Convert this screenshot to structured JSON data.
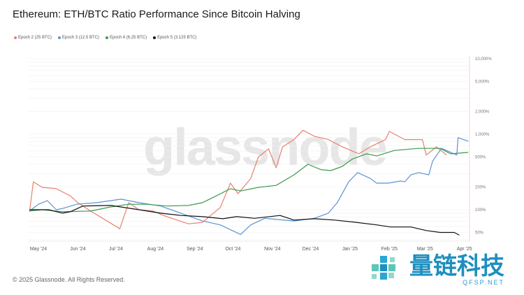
{
  "title": "Ethereum: ETH/BTC Ratio Performance Since Bitcoin Halving",
  "copyright": "© 2025 Glassnode. All Rights Reserved.",
  "watermark": "glassnode",
  "logo": {
    "cn": "量链科技",
    "en": "QFSP.NET"
  },
  "chart_data": {
    "type": "line",
    "title": "Ethereum: ETH/BTC Ratio Performance Since Bitcoin Halving",
    "xlabel": "",
    "ylabel": "",
    "yscale": "log",
    "ylim": [
      40,
      10000
    ],
    "grid": true,
    "legend_position": "top-left",
    "x_ticks": [
      "May '24",
      "Jun '24",
      "Jul '24",
      "Aug '24",
      "Sep '24",
      "Oct '24",
      "Nov '24",
      "Dec '24",
      "Jan '25",
      "Feb '25",
      "Mar '25",
      "Apr '25"
    ],
    "x_tick_dates": [
      "2024-05-01",
      "2024-06-01",
      "2024-07-01",
      "2024-08-01",
      "2024-09-01",
      "2024-10-01",
      "2024-11-01",
      "2024-12-01",
      "2025-01-01",
      "2025-02-01",
      "2025-03-01",
      "2025-04-01"
    ],
    "y_ticks": [
      50,
      100,
      200,
      500,
      1000,
      2000,
      5000,
      10000
    ],
    "y_tick_labels": [
      "50%",
      "100%",
      "200%",
      "500%",
      "1,000%",
      "2,000%",
      "5,000%",
      "10,000%"
    ],
    "series": [
      {
        "name": "Epoch 2 (25 BTC)",
        "color": "#e8806f",
        "points": [
          [
            "2024-04-24",
            94
          ],
          [
            "2024-04-27",
            234
          ],
          [
            "2024-05-04",
            198
          ],
          [
            "2024-05-15",
            190
          ],
          [
            "2024-05-26",
            153
          ],
          [
            "2024-06-01",
            124
          ],
          [
            "2024-06-11",
            96
          ],
          [
            "2024-07-04",
            56
          ],
          [
            "2024-07-11",
            124
          ],
          [
            "2024-07-19",
            100
          ],
          [
            "2024-07-30",
            96
          ],
          [
            "2024-08-10",
            81
          ],
          [
            "2024-08-27",
            65
          ],
          [
            "2024-09-07",
            68
          ],
          [
            "2024-09-21",
            107
          ],
          [
            "2024-09-29",
            225
          ],
          [
            "2024-10-05",
            163
          ],
          [
            "2024-10-15",
            260
          ],
          [
            "2024-10-21",
            500
          ],
          [
            "2024-10-29",
            640
          ],
          [
            "2024-11-04",
            360
          ],
          [
            "2024-11-09",
            680
          ],
          [
            "2024-11-18",
            850
          ],
          [
            "2024-11-25",
            1130
          ],
          [
            "2024-12-04",
            940
          ],
          [
            "2024-12-15",
            850
          ],
          [
            "2024-12-26",
            680
          ],
          [
            "2025-01-08",
            550
          ],
          [
            "2025-01-17",
            680
          ],
          [
            "2025-01-29",
            850
          ],
          [
            "2025-02-01",
            1090
          ],
          [
            "2025-02-13",
            850
          ],
          [
            "2025-02-27",
            850
          ],
          [
            "2025-03-02",
            530
          ],
          [
            "2025-03-10",
            680
          ],
          [
            "2025-03-18",
            530
          ]
        ]
      },
      {
        "name": "Epoch 3 (12.5 BTC)",
        "color": "#5b93d3",
        "points": [
          [
            "2024-04-24",
            96
          ],
          [
            "2024-05-01",
            118
          ],
          [
            "2024-05-08",
            132
          ],
          [
            "2024-05-15",
            100
          ],
          [
            "2024-05-20",
            104
          ],
          [
            "2024-05-31",
            118
          ],
          [
            "2024-06-16",
            124
          ],
          [
            "2024-07-05",
            138
          ],
          [
            "2024-07-19",
            124
          ],
          [
            "2024-08-05",
            112
          ],
          [
            "2024-08-21",
            90
          ],
          [
            "2024-09-07",
            71
          ],
          [
            "2024-09-21",
            63
          ],
          [
            "2024-10-07",
            47
          ],
          [
            "2024-10-15",
            63
          ],
          [
            "2024-10-26",
            77
          ],
          [
            "2024-11-18",
            71
          ],
          [
            "2024-12-04",
            77
          ],
          [
            "2024-12-15",
            90
          ],
          [
            "2024-12-22",
            124
          ],
          [
            "2024-12-31",
            234
          ],
          [
            "2025-01-07",
            310
          ],
          [
            "2025-01-17",
            260
          ],
          [
            "2025-01-22",
            225
          ],
          [
            "2025-01-31",
            225
          ],
          [
            "2025-02-10",
            240
          ],
          [
            "2025-02-13",
            234
          ],
          [
            "2025-02-18",
            290
          ],
          [
            "2025-02-24",
            310
          ],
          [
            "2025-03-04",
            290
          ],
          [
            "2025-03-07",
            440
          ],
          [
            "2025-03-14",
            650
          ],
          [
            "2025-03-26",
            530
          ],
          [
            "2025-03-27",
            900
          ],
          [
            "2025-04-04",
            810
          ]
        ]
      },
      {
        "name": "Epoch 4 (6.25 BTC)",
        "color": "#3d9a4f",
        "points": [
          [
            "2024-04-24",
            96
          ],
          [
            "2024-05-04",
            100
          ],
          [
            "2024-05-20",
            94
          ],
          [
            "2024-06-11",
            96
          ],
          [
            "2024-06-27",
            109
          ],
          [
            "2024-07-11",
            118
          ],
          [
            "2024-07-25",
            118
          ],
          [
            "2024-08-10",
            112
          ],
          [
            "2024-08-27",
            114
          ],
          [
            "2024-09-07",
            124
          ],
          [
            "2024-09-18",
            153
          ],
          [
            "2024-09-29",
            190
          ],
          [
            "2024-10-07",
            177
          ],
          [
            "2024-10-21",
            198
          ],
          [
            "2024-11-04",
            210
          ],
          [
            "2024-11-18",
            290
          ],
          [
            "2024-11-29",
            400
          ],
          [
            "2024-12-09",
            340
          ],
          [
            "2024-12-17",
            330
          ],
          [
            "2024-12-26",
            375
          ],
          [
            "2025-01-03",
            470
          ],
          [
            "2025-01-14",
            550
          ],
          [
            "2025-01-22",
            515
          ],
          [
            "2025-02-05",
            610
          ],
          [
            "2025-02-24",
            650
          ],
          [
            "2025-03-13",
            650
          ],
          [
            "2025-03-21",
            550
          ],
          [
            "2025-04-04",
            575
          ]
        ]
      },
      {
        "name": "Epoch 5 (3.125 BTC)",
        "color": "#111111",
        "points": [
          [
            "2024-04-24",
            100
          ],
          [
            "2024-05-09",
            100
          ],
          [
            "2024-05-20",
            90
          ],
          [
            "2024-05-26",
            94
          ],
          [
            "2024-06-05",
            112
          ],
          [
            "2024-06-27",
            114
          ],
          [
            "2024-07-19",
            100
          ],
          [
            "2024-08-05",
            90
          ],
          [
            "2024-08-21",
            84
          ],
          [
            "2024-09-07",
            81
          ],
          [
            "2024-09-23",
            76
          ],
          [
            "2024-10-04",
            81
          ],
          [
            "2024-10-18",
            77
          ],
          [
            "2024-11-07",
            84
          ],
          [
            "2024-11-18",
            73
          ],
          [
            "2024-12-04",
            76
          ],
          [
            "2024-12-20",
            73
          ],
          [
            "2025-01-06",
            68
          ],
          [
            "2025-01-22",
            63
          ],
          [
            "2025-02-02",
            59
          ],
          [
            "2025-02-18",
            59
          ],
          [
            "2025-03-02",
            53
          ],
          [
            "2025-03-13",
            50
          ],
          [
            "2025-03-24",
            50
          ],
          [
            "2025-03-28",
            46
          ]
        ]
      }
    ]
  }
}
